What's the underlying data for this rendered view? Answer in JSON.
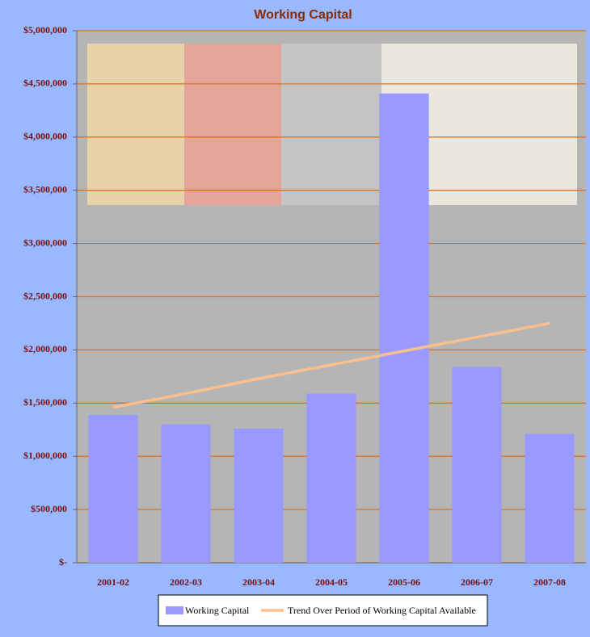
{
  "chart_data": {
    "type": "bar",
    "title": "Working Capital",
    "categories": [
      "2001-02",
      "2002-03",
      "2003-04",
      "2004-05",
      "2005-06",
      "2006-07",
      "2007-08"
    ],
    "series": [
      {
        "name": "Working Capital",
        "type": "bar",
        "color": "#9999ff",
        "values": [
          1390000,
          1300000,
          1260000,
          1590000,
          4410000,
          1840000,
          1210000
        ]
      },
      {
        "name": "Trend Over Period of Working Capital Available",
        "type": "line",
        "color": "#f9c08e",
        "values": [
          1460000,
          1590000,
          1730000,
          1860000,
          1990000,
          2120000,
          2250000
        ]
      }
    ],
    "ylim": [
      0,
      5000000
    ],
    "yticks": [
      {
        "value": 0,
        "label": "$-"
      },
      {
        "value": 500000,
        "label": "$500,000"
      },
      {
        "value": 1000000,
        "label": "$1,000,000"
      },
      {
        "value": 1500000,
        "label": "$1,500,000"
      },
      {
        "value": 2000000,
        "label": "$2,000,000"
      },
      {
        "value": 2500000,
        "label": "$2,500,000"
      },
      {
        "value": 3000000,
        "label": "$3,000,000"
      },
      {
        "value": 3500000,
        "label": "$3,500,000"
      },
      {
        "value": 4000000,
        "label": "$4,000,000"
      },
      {
        "value": 4500000,
        "label": "$4,500,000"
      },
      {
        "value": 5000000,
        "label": "$5,000,000"
      }
    ],
    "grid": true,
    "grid_color": "#e0701c",
    "legend": "bottom"
  }
}
